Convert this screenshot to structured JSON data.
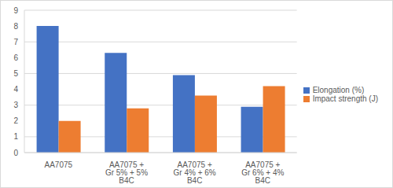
{
  "chart_data": {
    "type": "bar",
    "categories": [
      "AA7075",
      "AA7075 + Gr 5% + 5% B4C",
      "AA7075 + Gr 4% + 6% B4C",
      "AA7075 + Gr 6% + 4% B4C"
    ],
    "series": [
      {
        "name": "Elongation (%)",
        "color": "#4472c4",
        "values": [
          8,
          6.3,
          4.9,
          2.9
        ]
      },
      {
        "name": "Impact strength (J)",
        "color": "#ed7d31",
        "values": [
          2,
          2.8,
          3.6,
          4.2
        ]
      }
    ],
    "ylim": [
      0,
      9
    ],
    "yticks": [
      0,
      1,
      2,
      3,
      4,
      5,
      6,
      7,
      8,
      9
    ],
    "grid": true,
    "legend": "right"
  }
}
